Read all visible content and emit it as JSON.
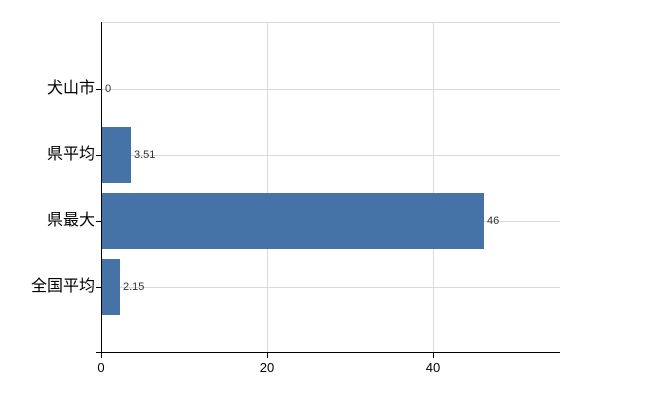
{
  "chart_data": {
    "type": "bar",
    "orientation": "horizontal",
    "title": "",
    "categories": [
      "犬山市",
      "県平均",
      "県最大",
      "全国平均"
    ],
    "values": [
      0,
      3.51,
      46,
      2.15
    ],
    "value_labels": [
      "0",
      "3.51",
      "46",
      "2.15"
    ],
    "x_ticks": [
      0,
      20,
      40
    ],
    "x_tick_labels": [
      "0",
      "20",
      "40"
    ],
    "xlim": [
      0,
      55.3
    ],
    "grid": true,
    "legend": false,
    "bar_color": "#4572a7",
    "grid_color": "#d9d9d9",
    "axis_color": "#000000",
    "category_text_color": "#000000",
    "value_text_color": "#333333"
  }
}
